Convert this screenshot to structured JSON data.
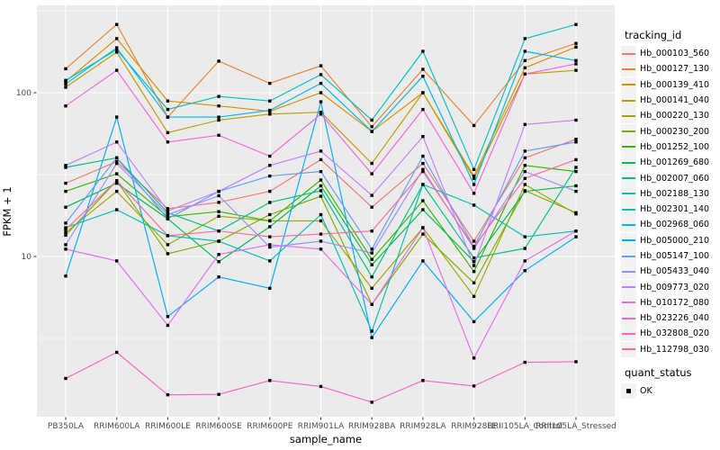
{
  "chart_data": {
    "type": "line",
    "xlabel": "sample_name",
    "ylabel": "FPKM + 1",
    "y_scale": "log10",
    "ylim": [
      1.04,
      337
    ],
    "y_ticks": [
      {
        "value": 10,
        "label": "10"
      },
      {
        "value": 100,
        "label": "100"
      }
    ],
    "y_minor_ticks": [
      3.1623,
      31.623,
      316.23
    ],
    "grid": "on",
    "panel_bg": "#EBEBEB",
    "grid_color": "#FFFFFF",
    "tick_color": "#333333",
    "tick_label_color": "#4D4D4D",
    "marker_color": "#000000",
    "legend_position": "right",
    "legend_title": "tracking_id",
    "legend2_title": "quant_status",
    "legend2_items": [
      {
        "label": "OK",
        "marker": "black-square"
      }
    ],
    "categories": [
      "PB350LA",
      "RRIM600LA",
      "RRIM600LE",
      "RRIM600SE",
      "RRIM600PE",
      "RRIM901LA",
      "RRIM928BA",
      "RRIM928LA",
      "RRIM928LE",
      "RRII105LA_Control",
      "RRII105LA_Stressed"
    ],
    "series": [
      {
        "name": "Hb_000103_560",
        "color": "#F8766D",
        "values": [
          28,
          38,
          19.6,
          21.4,
          25,
          39,
          20,
          37,
          12.4,
          40,
          52
        ]
      },
      {
        "name": "Hb_000127_130",
        "color": "#EA8331",
        "values": [
          140,
          261,
          71,
          156,
          114,
          146,
          62,
          139,
          63,
          157,
          200
        ]
      },
      {
        "name": "Hb_000139_410",
        "color": "#D89000",
        "values": [
          117,
          214,
          89,
          83,
          77,
          100,
          58,
          100,
          31,
          142,
          190
        ]
      },
      {
        "name": "Hb_000141_040",
        "color": "#C09B00",
        "values": [
          108,
          177,
          57,
          68,
          74,
          76,
          37,
          100,
          30,
          130,
          137
        ]
      },
      {
        "name": "Hb_000220_130",
        "color": "#A3A500",
        "values": [
          14,
          25,
          11.8,
          17.6,
          16.5,
          16.5,
          6.4,
          15,
          5.7,
          27.5,
          18.2
        ]
      },
      {
        "name": "Hb_000230_200",
        "color": "#7CAE00",
        "values": [
          13.5,
          29,
          10.4,
          12.4,
          18,
          23.3,
          5.1,
          13.7,
          6.9,
          25.2,
          18.5
        ]
      },
      {
        "name": "Hb_001252_100",
        "color": "#39B600",
        "values": [
          25,
          32,
          17.5,
          18.8,
          16.5,
          29.3,
          9.6,
          21.9,
          8.1,
          36,
          33
        ]
      },
      {
        "name": "Hb_001269_680",
        "color": "#00BB4E",
        "values": [
          20,
          28,
          17,
          9.3,
          15.2,
          27,
          8.9,
          19.3,
          9.3,
          25,
          27
        ]
      },
      {
        "name": "Hb_002007_060",
        "color": "#00C087",
        "values": [
          35,
          40,
          18.5,
          14.3,
          21.4,
          25.2,
          7.5,
          27.5,
          9.8,
          11.2,
          35
        ]
      },
      {
        "name": "Hb_002188_130",
        "color": "#00C0B2",
        "values": [
          15,
          19.3,
          13.4,
          12.4,
          9.4,
          18,
          3.5,
          27.5,
          20.6,
          13.2,
          14.3
        ]
      },
      {
        "name": "Hb_002301_140",
        "color": "#00BFC4",
        "values": [
          119,
          183,
          79,
          95,
          89,
          129,
          68,
          179,
          34,
          214,
          261
        ]
      },
      {
        "name": "Hb_002968_060",
        "color": "#00B8E7",
        "values": [
          113,
          188,
          71,
          71,
          78,
          114,
          58,
          126,
          27.5,
          179,
          157
        ]
      },
      {
        "name": "Hb_005000_210",
        "color": "#00ACFC",
        "values": [
          7.6,
          71,
          4.3,
          7.5,
          6.4,
          88,
          3.2,
          9.4,
          4.0,
          8.2,
          13.2
        ]
      },
      {
        "name": "Hb_005147_100",
        "color": "#619CFF",
        "values": [
          16,
          40,
          17,
          25,
          31,
          33,
          11.1,
          41,
          11.5,
          44,
          50
        ]
      },
      {
        "name": "Hb_005433_040",
        "color": "#9590FF",
        "values": [
          11.8,
          37,
          18,
          23.5,
          11.4,
          12.4,
          10.5,
          34,
          11.2,
          33,
          25
        ]
      },
      {
        "name": "Hb_009773_020",
        "color": "#C77CFF",
        "values": [
          36,
          50,
          19,
          25,
          36,
          44,
          23.6,
          54,
          8.8,
          64,
          68
        ]
      },
      {
        "name": "Hb_010172_080",
        "color": "#E76BF3",
        "values": [
          11.1,
          9.4,
          3.8,
          10.3,
          11.8,
          11.1,
          5.1,
          15,
          2.4,
          9.4,
          14.3
        ]
      },
      {
        "name": "Hb_023226_040",
        "color": "#FA62DB",
        "values": [
          83,
          137,
          50,
          55,
          41,
          74,
          32,
          79,
          24.3,
          130,
          150
        ]
      },
      {
        "name": "Hb_032808_020",
        "color": "#FF61C6",
        "values": [
          1.8,
          2.6,
          1.43,
          1.44,
          1.75,
          1.61,
          1.29,
          1.75,
          1.62,
          2.26,
          2.28
        ]
      },
      {
        "name": "Hb_112798_030",
        "color": "#FF6A99",
        "values": [
          14.6,
          29,
          13.4,
          14.3,
          13.2,
          13.7,
          14.3,
          33,
          11.5,
          30,
          39
        ]
      }
    ]
  }
}
